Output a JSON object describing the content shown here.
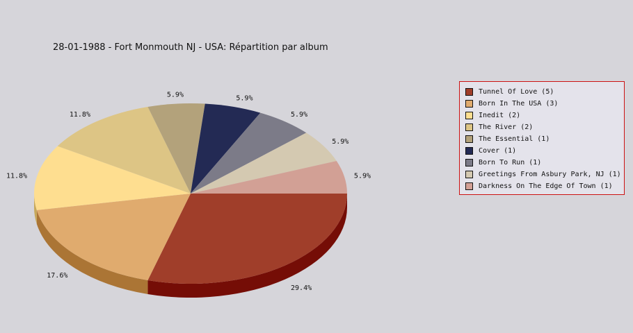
{
  "chart_data": {
    "type": "pie",
    "title": "28-01-1988 - Fort Monmouth NJ - USA:  Répartition par album",
    "legend_position": "right",
    "slices": [
      {
        "label": "Tunnel Of Love",
        "count": 5,
        "legend": "Tunnel Of Love (5)",
        "percent_label": "29.4%",
        "color": "#a03e2a",
        "side_color": "#750d06"
      },
      {
        "label": "Born In The USA",
        "count": 3,
        "legend": "Born In The USA (3)",
        "percent_label": "17.6%",
        "color": "#e0ab6e",
        "side_color": "#ab7535"
      },
      {
        "label": "Inedit",
        "count": 2,
        "legend": "Inedit (2)",
        "percent_label": "11.8%",
        "color": "#fede90",
        "side_color": "#c7a85a"
      },
      {
        "label": "The River",
        "count": 2,
        "legend": "The River (2)",
        "percent_label": "11.8%",
        "color": "#ddc585",
        "side_color": "#a8904e"
      },
      {
        "label": "The Essential",
        "count": 1,
        "legend": "The Essential (1)",
        "percent_label": "5.9%",
        "color": "#b3a27b",
        "side_color": "#7f6f4a"
      },
      {
        "label": "Cover",
        "count": 1,
        "legend": "Cover (1)",
        "percent_label": "5.9%",
        "color": "#232a54",
        "side_color": "#10142e"
      },
      {
        "label": "Born To Run",
        "count": 1,
        "legend": "Born To Run (1)",
        "percent_label": "5.9%",
        "color": "#7c7b88",
        "side_color": "#4e4d58"
      },
      {
        "label": "Greetings From Asbury Park, NJ",
        "count": 1,
        "legend": "Greetings From Asbury Park, NJ (1)",
        "percent_label": "5.9%",
        "color": "#d4c9b1",
        "side_color": "#a39883"
      },
      {
        "label": "Darkness On The Edge Of Town",
        "count": 1,
        "legend": "Darkness On The Edge Of Town (1)",
        "percent_label": "5.9%",
        "color": "#d2a095",
        "side_color": "#9f6f66"
      }
    ]
  }
}
